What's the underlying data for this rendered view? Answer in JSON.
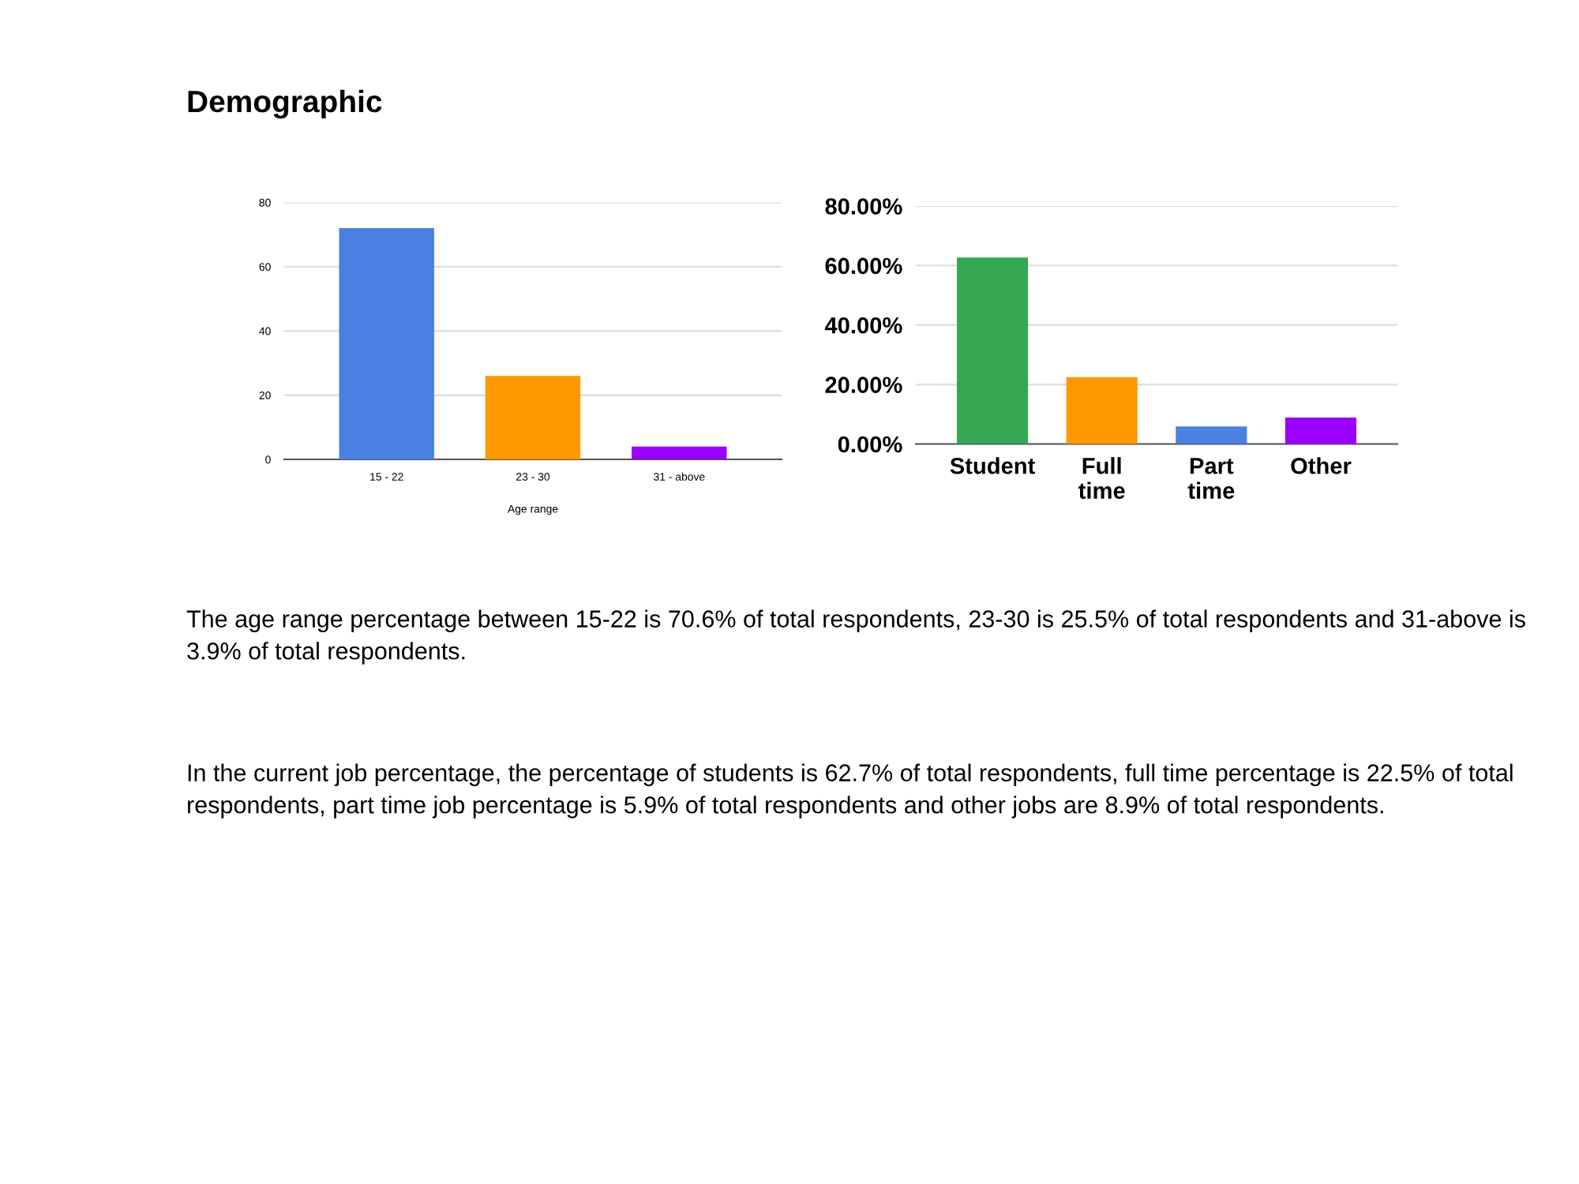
{
  "chart_data": [
    {
      "type": "bar",
      "title": "Demographic",
      "xlabel": "Age range",
      "categories": [
        "15 - 22",
        "23 - 30",
        "31 - above"
      ],
      "values": [
        72,
        26,
        4
      ],
      "colors": [
        "#4a80e2",
        "#ff9900",
        "#9900ff"
      ],
      "ylim": [
        0,
        80
      ],
      "yticks": [
        0,
        20,
        40,
        60,
        80
      ],
      "grid": "y",
      "annotations": [
        "The age range percentage between 15-22 is 70.6% of total respondents, 23-30 is 25.5% of total respondents and 31-above is 3.9% of total respondents.",
        "In the current job percentage, the percentage of students is 62.7% of total respondents, full time percentage is 22.5% of total respondents, part time job percentage is 5.9% of total respondents and other jobs are 8.9% of total respondents."
      ]
    },
    {
      "type": "bar",
      "categories": [
        "Student",
        "Full\ntime",
        "Part\ntime",
        "Other"
      ],
      "values": [
        62.7,
        22.5,
        5.9,
        8.9
      ],
      "colors": [
        "#34a853",
        "#ff9900",
        "#4a80e2",
        "#9900ff"
      ],
      "ylim": [
        0,
        80
      ],
      "yticks": [
        {
          "value": 0,
          "label": "0.00%"
        },
        {
          "value": 20,
          "label": "20.00%"
        },
        {
          "value": 40,
          "label": "40.00%"
        },
        {
          "value": 60,
          "label": "60.00%"
        },
        {
          "value": 80,
          "label": "80.00%"
        }
      ],
      "grid": "y"
    }
  ]
}
